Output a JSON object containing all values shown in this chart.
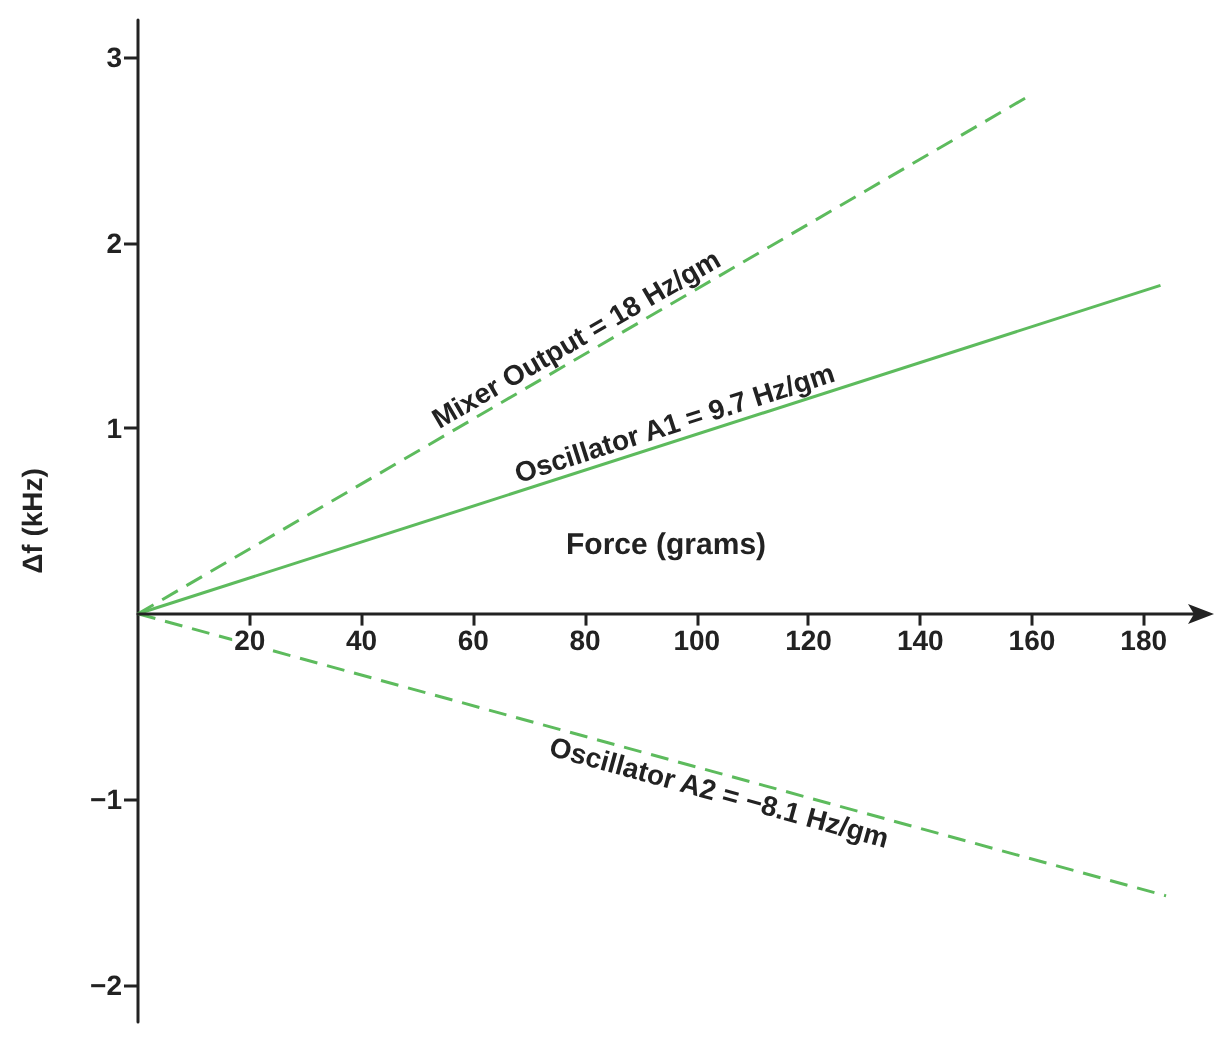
{
  "chart_data": {
    "type": "line",
    "xlabel": "Force (grams)",
    "ylabel": "Δf (kHz)",
    "xlim": [
      0,
      189
    ],
    "xticks": [
      20,
      40,
      60,
      80,
      100,
      120,
      140,
      160,
      180
    ],
    "ylim": [
      -2.2,
      3.2
    ],
    "yticks": [
      {
        "value": -2,
        "label": "−2"
      },
      {
        "value": -1,
        "label": "−1"
      },
      1,
      2,
      3
    ],
    "grid": false,
    "legend": false,
    "marker": "none",
    "series": [
      {
        "name": "Mixer Output = 18 Hz/gm",
        "color": "#5dbb5d",
        "line_style": "dashed",
        "x": [
          0,
          160
        ],
        "values": [
          0,
          2.8
        ]
      },
      {
        "name": "Oscillator A1 = 9.7 Hz/gm",
        "color": "#5dbb5d",
        "line_style": "solid",
        "x": [
          0,
          183
        ],
        "values": [
          0,
          1.77
        ]
      },
      {
        "name": "Oscillator A2 = −8.1 Hz/gm",
        "color": "#5dbb5d",
        "line_style": "dashed",
        "x": [
          0,
          184
        ],
        "values": [
          0,
          -1.52
        ]
      }
    ]
  }
}
